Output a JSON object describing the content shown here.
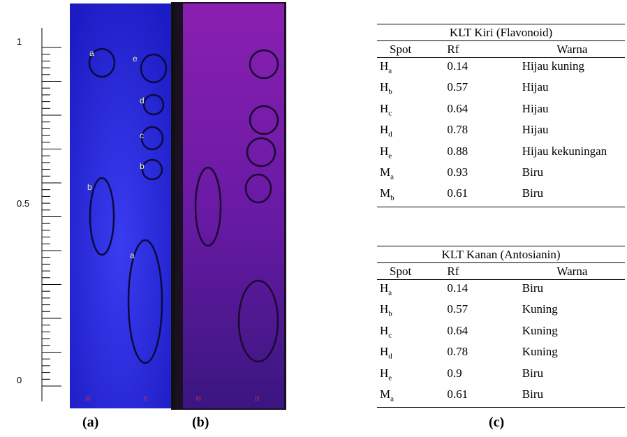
{
  "ruler": {
    "labels": [
      "1",
      "0.5",
      "0"
    ]
  },
  "plate_a": {
    "spots": [
      "a",
      "e",
      "d",
      "c",
      "b",
      "b",
      "a"
    ],
    "lanes": [
      "M",
      "H"
    ]
  },
  "plate_b": {
    "lanes": [
      "M",
      "H"
    ]
  },
  "table_left": {
    "title": "KLT Kiri  (Flavonoid)",
    "headers": [
      "Spot",
      "Rf",
      "Warna"
    ],
    "rows": [
      {
        "spot": "H",
        "sub": "a",
        "rf": 0.14,
        "warna": "Hijau kuning"
      },
      {
        "spot": "H",
        "sub": "b",
        "rf": 0.57,
        "warna": "Hijau"
      },
      {
        "spot": "H",
        "sub": "c",
        "rf": 0.64,
        "warna": "Hijau"
      },
      {
        "spot": "H",
        "sub": "d",
        "rf": 0.78,
        "warna": "Hijau"
      },
      {
        "spot": "H",
        "sub": "e",
        "rf": 0.88,
        "warna": "Hijau kekuningan"
      },
      {
        "spot": "M",
        "sub": "a",
        "rf": 0.93,
        "warna": "Biru"
      },
      {
        "spot": "M",
        "sub": "b",
        "rf": 0.61,
        "warna": "Biru"
      }
    ]
  },
  "table_right": {
    "title": "KLT Kanan (Antosianin)",
    "headers": [
      "Spot",
      "Rf",
      "Warna"
    ],
    "rows": [
      {
        "spot": "H",
        "sub": "a",
        "rf": 0.14,
        "warna": "Biru"
      },
      {
        "spot": "H",
        "sub": "b",
        "rf": 0.57,
        "warna": "Kuning"
      },
      {
        "spot": "H",
        "sub": "c",
        "rf": 0.64,
        "warna": "Kuning"
      },
      {
        "spot": "H",
        "sub": "d",
        "rf": 0.78,
        "warna": "Kuning"
      },
      {
        "spot": "H",
        "sub": "e",
        "rf": 0.9,
        "warna": "Biru"
      },
      {
        "spot": "M",
        "sub": "a",
        "rf": 0.61,
        "warna": "Biru"
      }
    ]
  },
  "captions": [
    "(a)",
    "(b)",
    "(c)"
  ]
}
